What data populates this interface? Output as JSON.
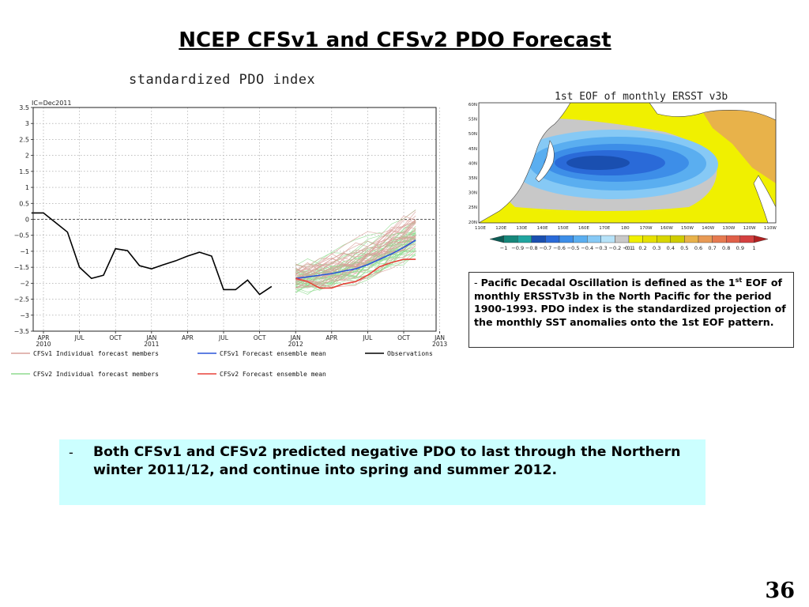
{
  "slide": {
    "title": "NCEP CFSv1 and CFSv2 PDO Forecast",
    "page_number": "36"
  },
  "chart_data": {
    "type": "line",
    "title": "standardized PDO index",
    "subtitle": "IC=Dec2011",
    "xlabel": "",
    "ylabel": "",
    "ylim": [
      -3.5,
      3.5
    ],
    "yticks": [
      3.5,
      3,
      2.5,
      2,
      1.5,
      1,
      0.5,
      0,
      -0.5,
      -1,
      -1.5,
      -2,
      -2.5,
      -3,
      -3.5
    ],
    "ytick_labels": [
      "3.5",
      "3",
      "2.5",
      "2",
      "1.5",
      "1",
      "0.5",
      "0",
      "−0.5",
      "−1",
      "−1.5",
      "−2",
      "−2.5",
      "−3",
      "−3.5"
    ],
    "xtick_labels": [
      {
        "month": "APR",
        "year": "2010"
      },
      {
        "month": "JUL",
        "year": ""
      },
      {
        "month": "OCT",
        "year": ""
      },
      {
        "month": "JAN",
        "year": "2011"
      },
      {
        "month": "APR",
        "year": ""
      },
      {
        "month": "JUL",
        "year": ""
      },
      {
        "month": "OCT",
        "year": ""
      },
      {
        "month": "JAN",
        "year": "2012"
      },
      {
        "month": "APR",
        "year": ""
      },
      {
        "month": "JUL",
        "year": ""
      },
      {
        "month": "OCT",
        "year": ""
      },
      {
        "month": "JAN",
        "year": "2013"
      }
    ],
    "grid": true,
    "zero_line": true,
    "legend": [
      {
        "label": "CFSv1 Individual forecast members",
        "color": "#d9a09a"
      },
      {
        "label": "CFSv1 Forecast ensemble mean",
        "color": "#2a55d8"
      },
      {
        "label": "Observations",
        "color": "#000000"
      },
      {
        "label": "CFSv2 Individual forecast members",
        "color": "#8fdc8f"
      },
      {
        "label": "CFSv2 Forecast ensemble mean",
        "color": "#e8423a"
      }
    ],
    "series": [
      {
        "name": "Observations",
        "color": "#000000",
        "start": "2010-03",
        "values": [
          0.2,
          0.2,
          -0.1,
          -0.4,
          -1.5,
          -1.85,
          -1.75,
          -0.92,
          -0.98,
          -1.45,
          -1.55,
          -1.42,
          -1.3,
          -1.15,
          -1.03,
          -1.15,
          -2.2,
          -2.2,
          -1.9,
          -2.35,
          -2.1
        ]
      },
      {
        "name": "CFSv1 Forecast ensemble mean",
        "color": "#2a55d8",
        "start": "2012-01",
        "values": [
          -1.85,
          -1.8,
          -1.75,
          -1.7,
          -1.62,
          -1.55,
          -1.42,
          -1.25,
          -1.08,
          -0.88,
          -0.65
        ]
      },
      {
        "name": "CFSv2 Forecast ensemble mean",
        "color": "#e8423a",
        "start": "2012-01",
        "values": [
          -1.85,
          -1.95,
          -2.15,
          -2.15,
          -2.02,
          -1.95,
          -1.75,
          -1.48,
          -1.35,
          -1.25,
          -1.25
        ]
      }
    ]
  },
  "eof_map": {
    "title": "1st EOF of monthly ERSST v3b",
    "lat_labels": [
      "60N",
      "55N",
      "50N",
      "45N",
      "40N",
      "35N",
      "30N",
      "25N",
      "20N"
    ],
    "lon_labels": [
      "110E",
      "120E",
      "130E",
      "140E",
      "150E",
      "160E",
      "170E",
      "180",
      "170W",
      "160W",
      "150W",
      "140W",
      "130W",
      "120W",
      "110W"
    ],
    "colorbar_labels": [
      "−1",
      "−0.9",
      "−0.8",
      "−0.7",
      "−0.6",
      "−0.5",
      "−0.4",
      "−0.3",
      "−0.2",
      "−0.1",
      "0.1",
      "0.2",
      "0.3",
      "0.4",
      "0.5",
      "0.6",
      "0.7",
      "0.8",
      "0.9",
      "1"
    ],
    "colorbar_colors": [
      "#0d5c55",
      "#16877a",
      "#20a5a0",
      "#1a4fb0",
      "#2a6ad8",
      "#3d8ee8",
      "#5aaef0",
      "#86c9f5",
      "#b6e2f8",
      "#c8c8c8",
      "#f0f000",
      "#e6e000",
      "#d8d600",
      "#cfcc00",
      "#e8b24a",
      "#e89a55",
      "#e67a50",
      "#e06048",
      "#d44040",
      "#b02020"
    ]
  },
  "description_box": {
    "dash": "- ",
    "text_part1": "Pacific Decadal Oscillation is defined as the 1",
    "superscript": "st",
    "text_part2": " EOF of monthly ERSSTv3b in the North Pacific for the period 1900-1993. PDO index is the standardized projection of the monthly SST anomalies onto  the 1st EOF pattern."
  },
  "summary": {
    "bullet": "-",
    "text": "Both CFSv1 and CFSv2 predicted negative PDO to last through the Northern winter 2011/12, and continue into spring and summer 2012."
  }
}
